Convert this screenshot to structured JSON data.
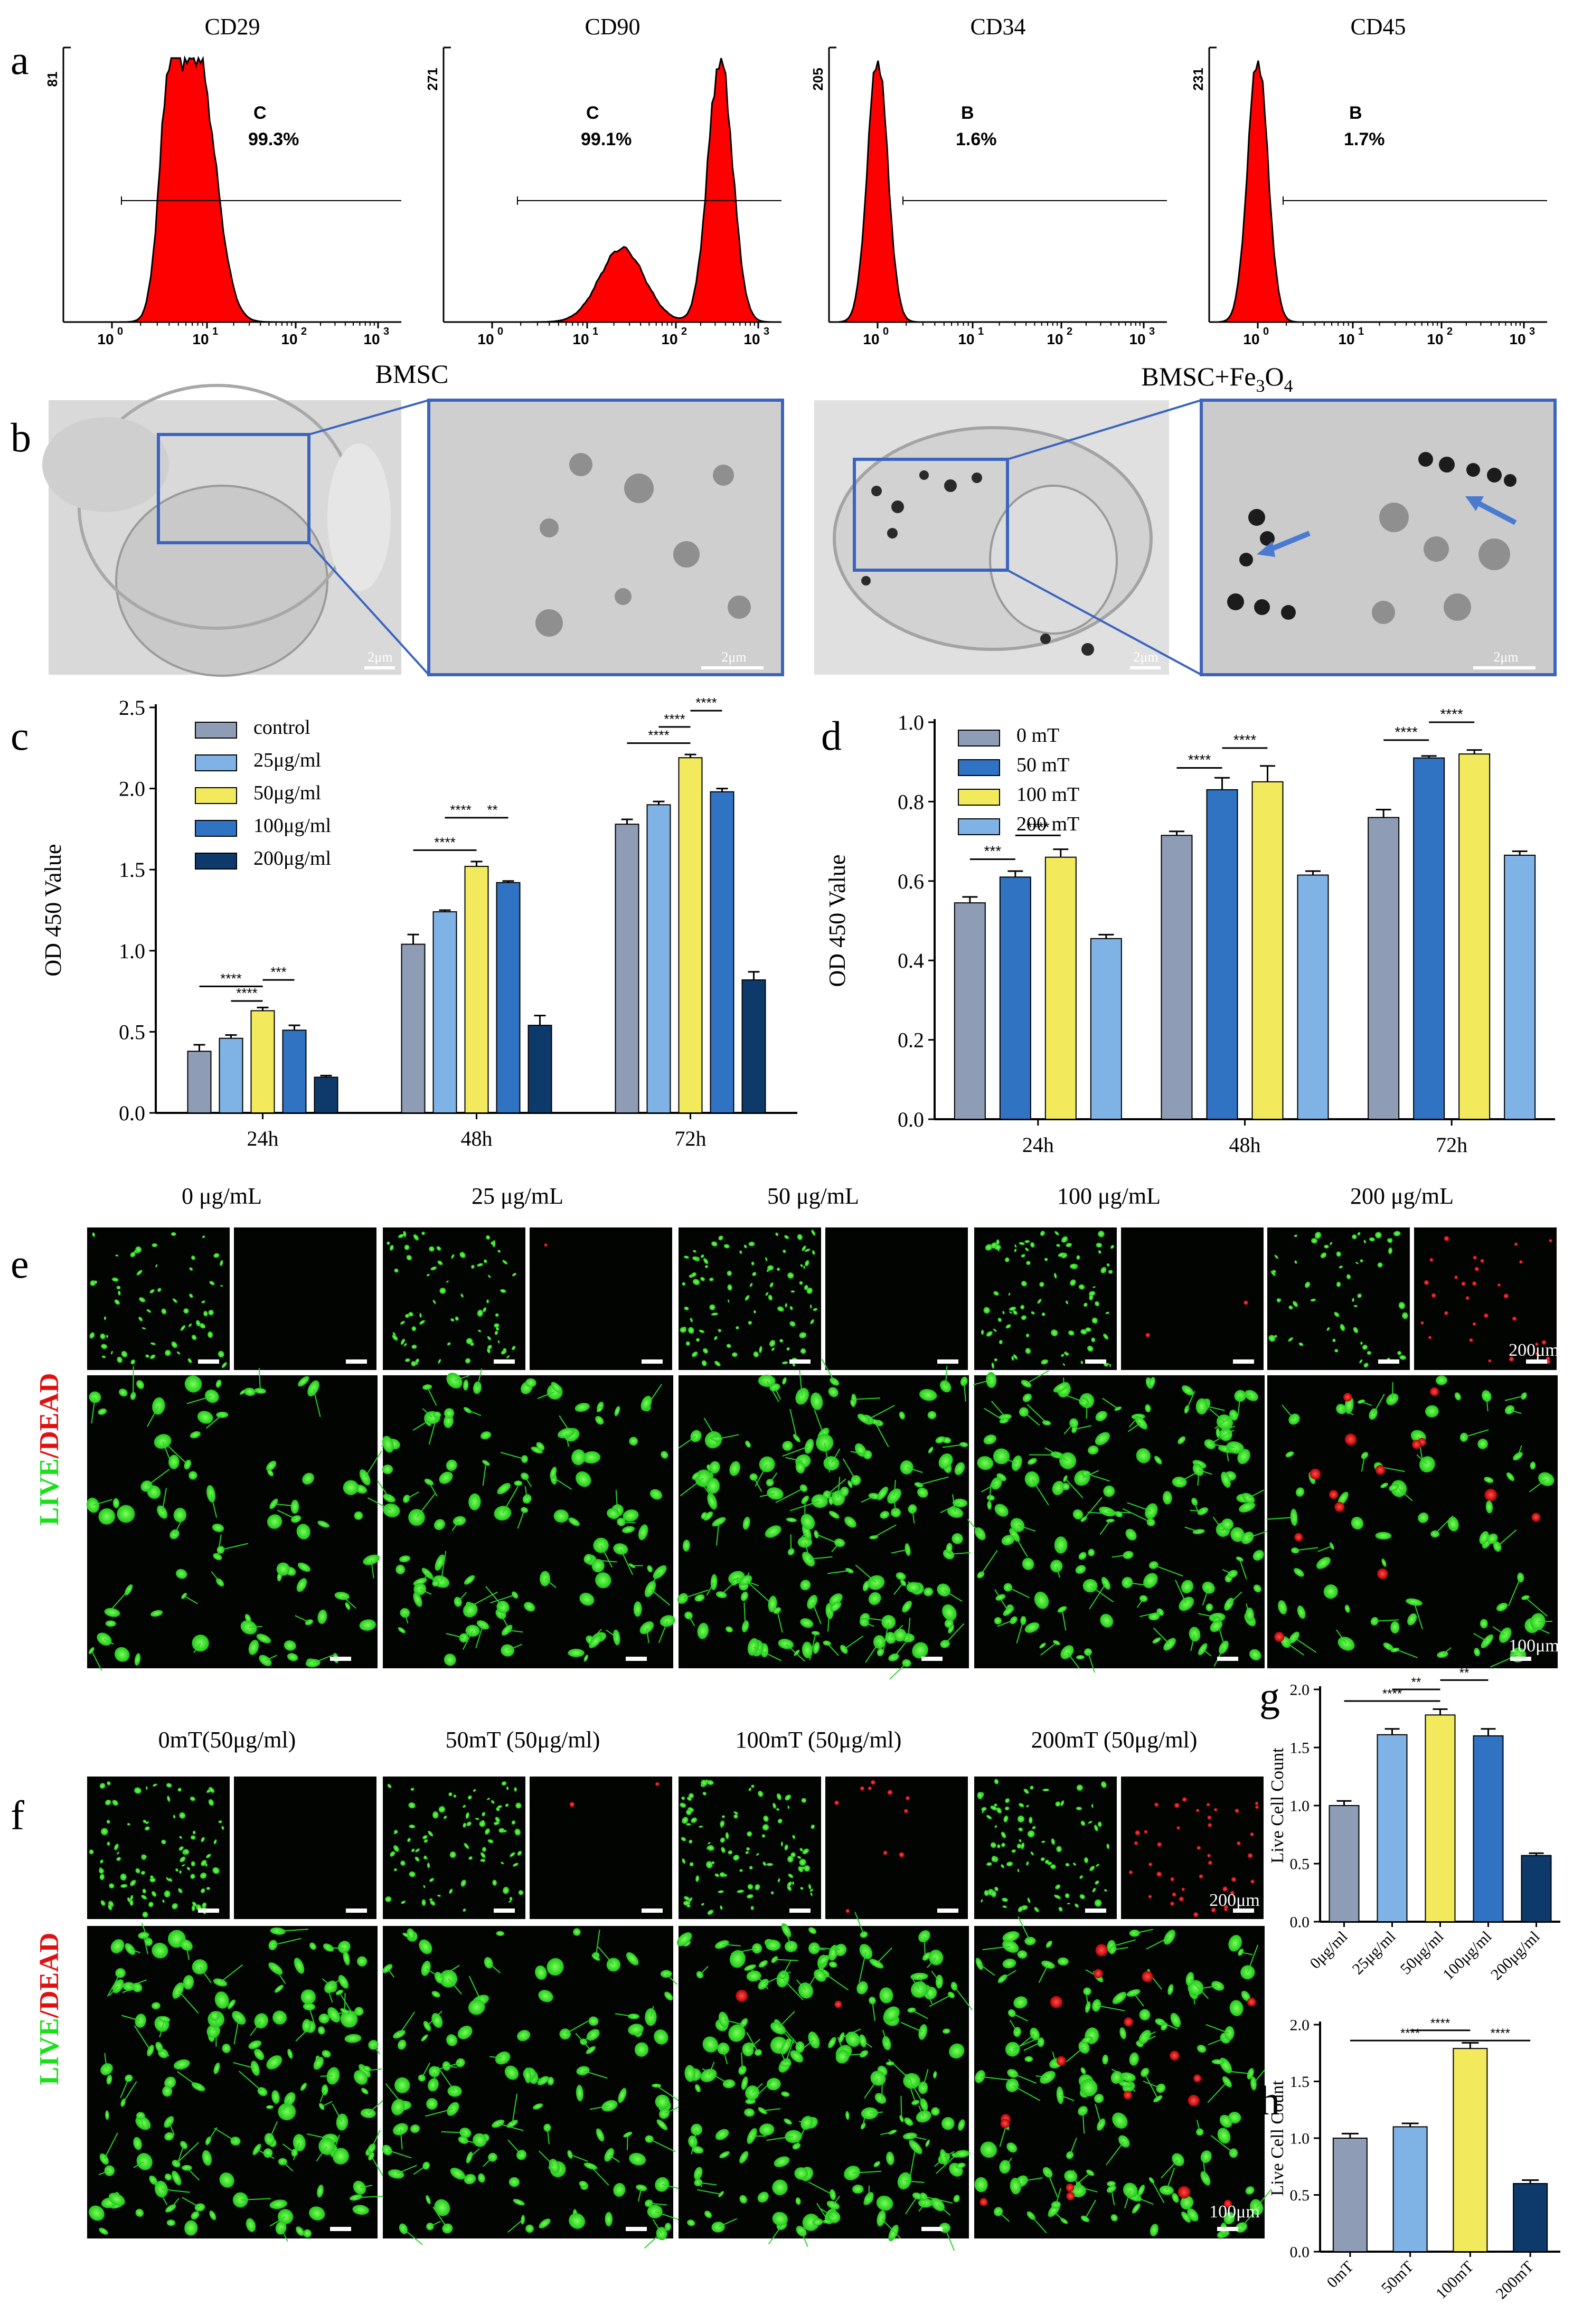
{
  "panels": {
    "a": "a",
    "b": "b",
    "c": "c",
    "d": "d",
    "e": "e",
    "f": "f",
    "g": "g",
    "h": "h"
  },
  "flow": {
    "ticks": [
      "10",
      "10",
      "10",
      "10"
    ],
    "tick_exp": [
      "0",
      "1",
      "2",
      "3"
    ],
    "plots": [
      {
        "title": "CD29",
        "ymax": "81",
        "gate": "C",
        "pct": "99.3%"
      },
      {
        "title": "CD90",
        "ymax": "271",
        "gate": "C",
        "pct": "99.1%"
      },
      {
        "title": "CD34",
        "ymax": "205",
        "gate": "B",
        "pct": "1.6%"
      },
      {
        "title": "CD45",
        "ymax": "231",
        "gate": "B",
        "pct": "1.7%"
      }
    ],
    "fill_color": "#ff0000"
  },
  "tem": {
    "left_title": "BMSC",
    "right_title_main": "BMSC+Fe",
    "right_title_sub1": "3",
    "right_title_mid": "O",
    "right_title_sub2": "4",
    "scalebars": [
      "2μm",
      "2μm",
      "2μm",
      "2μm"
    ],
    "box_color": "#3a64c0"
  },
  "colors": {
    "control": "#8e9db5",
    "c25": "#7fb3e6",
    "c50": "#f2ea5c",
    "c100": "#2f73c2",
    "c200": "#0d3a6b",
    "m0": "#8e9db5",
    "m50": "#2f73c2",
    "m100": "#f2ea5c",
    "m200": "#7fb3e6"
  },
  "chart_data": [
    {
      "id": "c",
      "type": "bar",
      "title": "",
      "xlabel": "",
      "ylabel": "OD 450 Value",
      "categories": [
        "24h",
        "48h",
        "72h"
      ],
      "ylim": [
        0,
        2.5
      ],
      "yticks": [
        "0.0",
        "0.5",
        "1.0",
        "1.5",
        "2.0",
        "2.5"
      ],
      "legend_position": "top-left",
      "series": [
        {
          "name": "control",
          "values": [
            0.38,
            1.04,
            1.78
          ],
          "errors": [
            0.04,
            0.06,
            0.03
          ]
        },
        {
          "name": "25μg/ml",
          "values": [
            0.46,
            1.24,
            1.9
          ],
          "errors": [
            0.02,
            0.01,
            0.02
          ]
        },
        {
          "name": "50μg/ml",
          "values": [
            0.63,
            1.52,
            2.19
          ],
          "errors": [
            0.02,
            0.03,
            0.02
          ]
        },
        {
          "name": "100μg/ml",
          "values": [
            0.51,
            1.42,
            1.98
          ],
          "errors": [
            0.03,
            0.01,
            0.02
          ]
        },
        {
          "name": "200μg/ml",
          "values": [
            0.22,
            0.54,
            0.82
          ],
          "errors": [
            0.01,
            0.06,
            0.05
          ]
        }
      ],
      "annotations": [
        "****",
        "****",
        "***",
        "****",
        "****",
        "**",
        "****",
        "****",
        "****"
      ]
    },
    {
      "id": "d",
      "type": "bar",
      "title": "",
      "xlabel": "",
      "ylabel": "OD 450 Value",
      "categories": [
        "24h",
        "48h",
        "72h"
      ],
      "ylim": [
        0,
        1.0
      ],
      "yticks": [
        "0.0",
        "0.2",
        "0.4",
        "0.6",
        "0.8",
        "1.0"
      ],
      "legend_position": "top-left",
      "series": [
        {
          "name": "0 mT",
          "values": [
            0.545,
            0.715,
            0.76
          ],
          "errors": [
            0.015,
            0.01,
            0.02
          ]
        },
        {
          "name": "50 mT",
          "values": [
            0.61,
            0.83,
            0.91
          ],
          "errors": [
            0.015,
            0.03,
            0.005
          ]
        },
        {
          "name": "100 mT",
          "values": [
            0.66,
            0.85,
            0.92
          ],
          "errors": [
            0.02,
            0.04,
            0.01
          ]
        },
        {
          "name": "200 mT",
          "values": [
            0.455,
            0.615,
            0.665
          ],
          "errors": [
            0.01,
            0.01,
            0.01
          ]
        }
      ],
      "annotations": [
        "***",
        "****",
        "****",
        "****",
        "****",
        "****"
      ]
    },
    {
      "id": "g",
      "type": "bar",
      "title": "",
      "xlabel": "",
      "ylabel": "Live Cell Count",
      "categories": [
        "0μg/ml",
        "25μg/ml",
        "50μg/ml",
        "100μg/ml",
        "200μg/ml"
      ],
      "ylim": [
        0,
        2.0
      ],
      "yticks": [
        "0.0",
        "0.5",
        "1.0",
        "1.5",
        "2.0"
      ],
      "values": [
        1.0,
        1.61,
        1.78,
        1.6,
        0.57
      ],
      "errors": [
        0.04,
        0.05,
        0.05,
        0.06,
        0.02
      ],
      "annotations": [
        "****",
        "**",
        "**"
      ]
    },
    {
      "id": "h",
      "type": "bar",
      "title": "",
      "xlabel": "",
      "ylabel": "Live Cell Count",
      "categories": [
        "0mT",
        "50mT",
        "100mT",
        "200mT"
      ],
      "ylim": [
        0,
        2.0
      ],
      "yticks": [
        "0.0",
        "0.5",
        "1.0",
        "1.5",
        "2.0"
      ],
      "values": [
        1.0,
        1.1,
        1.79,
        0.6
      ],
      "errors": [
        0.04,
        0.03,
        0.05,
        0.03
      ],
      "annotations": [
        "****",
        "****",
        "****"
      ]
    }
  ],
  "live_dead_e": {
    "headers": [
      "0 μg/mL",
      "25 μg/mL",
      "50 μg/mL",
      "100 μg/mL",
      "200 μg/mL"
    ],
    "side_live": "LIVE",
    "side_slash": "/",
    "side_dead": "DEAD",
    "scale_top": "200μm",
    "scale_bottom": "100μm"
  },
  "live_dead_f": {
    "headers": [
      "0mT(50μg/ml)",
      "50mT (50μg/ml)",
      "100mT (50μg/ml)",
      "200mT (50μg/ml)"
    ],
    "side_live": "LIVE",
    "side_slash": "/",
    "side_dead": "DEAD",
    "scale_top": "200μm",
    "scale_bottom": "100μm"
  }
}
